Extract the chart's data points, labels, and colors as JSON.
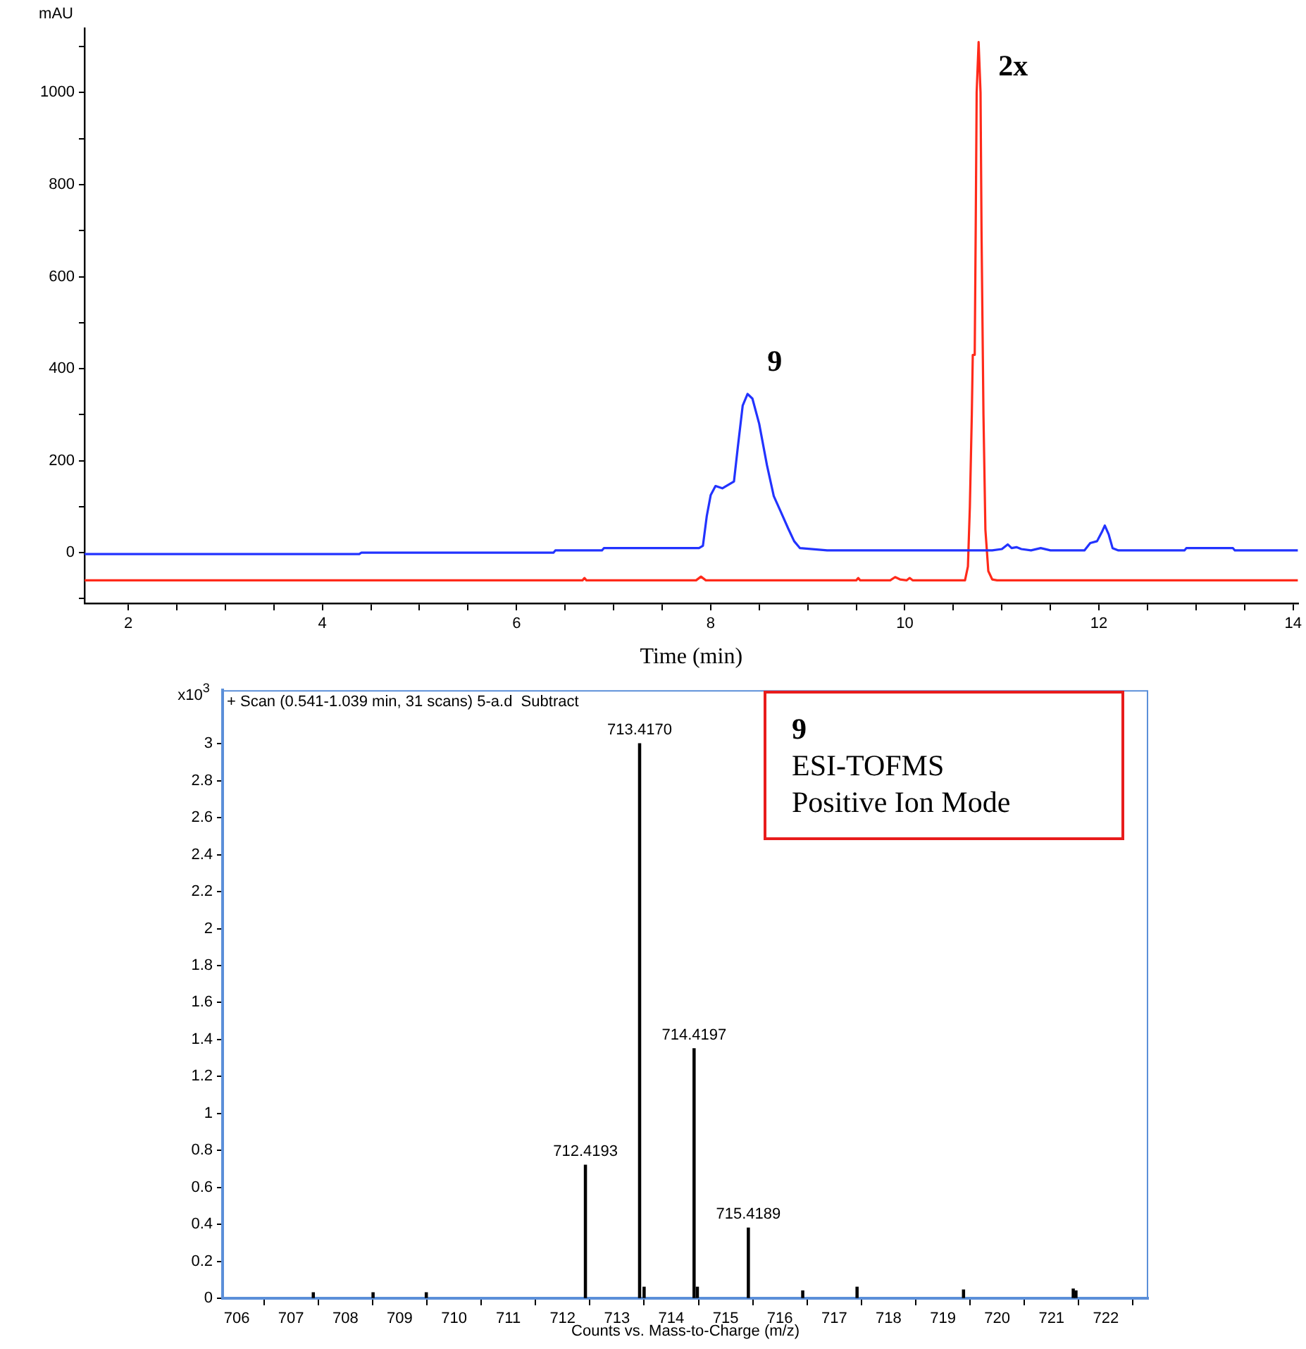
{
  "chart_data": [
    {
      "type": "line",
      "ylabel": "mAU",
      "xlabel": "Time (min)",
      "xlim": [
        1.55,
        14.05
      ],
      "ylim": [
        -110,
        1140
      ],
      "xticks": [
        2,
        {
          "value": 2.5,
          "label": null
        },
        {
          "value": 3,
          "label": null
        },
        {
          "value": 3.5,
          "label": null
        },
        4,
        {
          "value": 4.5,
          "label": null
        },
        {
          "value": 5,
          "label": null
        },
        {
          "value": 5.5,
          "label": null
        },
        6,
        {
          "value": 6.5,
          "label": null
        },
        {
          "value": 7,
          "label": null
        },
        {
          "value": 7.5,
          "label": null
        },
        8,
        {
          "value": 8.5,
          "label": null
        },
        {
          "value": 9,
          "label": null
        },
        {
          "value": 9.5,
          "label": null
        },
        10,
        {
          "value": 10.5,
          "label": null
        },
        {
          "value": 11,
          "label": null
        },
        {
          "value": 11.5,
          "label": null
        },
        12,
        {
          "value": 12.5,
          "label": null
        },
        {
          "value": 13,
          "label": null
        },
        {
          "value": 13.5,
          "label": null
        },
        14
      ],
      "yticks": [
        {
          "value": -100,
          "label": null
        },
        0,
        {
          "value": 100,
          "label": null
        },
        200,
        {
          "value": 300,
          "label": null
        },
        400,
        {
          "value": 500,
          "label": null
        },
        600,
        {
          "value": 700,
          "label": null
        },
        800,
        {
          "value": 900,
          "label": null
        },
        1000,
        {
          "value": 1100,
          "label": null
        }
      ],
      "marker": "none",
      "line_style": "solid",
      "annotations": [
        {
          "text": "9",
          "x": 8.38,
          "y": 345
        },
        {
          "text": "2x",
          "x": 10.76,
          "y": 1110
        }
      ],
      "series": [
        {
          "color": "#2233ff",
          "x": [
            1.55,
            4.38,
            4.4,
            6.38,
            6.4,
            6.88,
            6.9,
            7.88,
            7.92,
            7.96,
            8.0,
            8.05,
            8.12,
            8.2,
            8.24,
            8.28,
            8.33,
            8.38,
            8.43,
            8.5,
            8.58,
            8.65,
            8.72,
            8.8,
            8.86,
            8.92,
            9.2,
            10.9,
            11.0,
            11.06,
            11.1,
            11.15,
            11.2,
            11.3,
            11.4,
            11.5,
            11.85,
            11.91,
            11.98,
            12.03,
            12.06,
            12.1,
            12.14,
            12.2,
            12.88,
            12.9,
            13.38,
            13.4,
            14.05
          ],
          "values": [
            -3,
            -3,
            0,
            0,
            5,
            5,
            10,
            10,
            15,
            80,
            125,
            145,
            140,
            150,
            155,
            230,
            320,
            345,
            335,
            280,
            190,
            123,
            90,
            52,
            25,
            10,
            5,
            5,
            8,
            18,
            10,
            12,
            8,
            5,
            10,
            5,
            5,
            21,
            25,
            45,
            59,
            40,
            10,
            5,
            5,
            10,
            10,
            5,
            5
          ]
        },
        {
          "color": "#ff2a1a",
          "x": [
            1.55,
            6.68,
            6.7,
            6.72,
            7.85,
            7.9,
            7.95,
            9.5,
            9.52,
            9.54,
            9.85,
            9.9,
            9.95,
            10.02,
            10.05,
            10.08,
            10.62,
            10.65,
            10.67,
            10.69,
            10.7,
            10.72,
            10.73,
            10.74,
            10.76,
            10.78,
            10.79,
            10.81,
            10.83,
            10.86,
            10.9,
            10.95,
            14.05
          ],
          "values": [
            -60,
            -60,
            -55,
            -60,
            -60,
            -52,
            -60,
            -60,
            -55,
            -60,
            -60,
            -53,
            -58,
            -60,
            -55,
            -60,
            -60,
            -30,
            100,
            300,
            430,
            430,
            700,
            1000,
            1110,
            1000,
            700,
            300,
            50,
            -40,
            -58,
            -60,
            -60
          ]
        }
      ]
    },
    {
      "type": "bar",
      "title": "+ Scan (0.541-1.039 min, 31 scans) 5-a.d  Subtract",
      "ylabel": "x10$^{3}$",
      "xlabel": "Counts vs. Mass-to-Charge (m/z)",
      "xlim": [
        705.74,
        722.78
      ],
      "ylim": [
        0,
        3.29
      ],
      "xticks": [
        706,
        707,
        708,
        709,
        710,
        711,
        712,
        713,
        714,
        715,
        716,
        717,
        718,
        719,
        720,
        721,
        722
      ],
      "yticks": [
        0,
        0.2,
        0.4,
        0.6,
        0.8,
        1,
        1.2,
        1.4,
        1.6,
        1.8,
        2,
        2.2,
        2.4,
        2.6,
        2.8,
        3
      ],
      "color": "#000000",
      "x": [
        707.41,
        708.51,
        709.49,
        712.4193,
        713.417,
        713.5,
        714.4197,
        714.48,
        715.4189,
        716.42,
        717.42,
        719.38,
        721.4,
        721.45
      ],
      "values": [
        0.03,
        0.03,
        0.03,
        0.72,
        3.0,
        0.06,
        1.35,
        0.06,
        0.38,
        0.04,
        0.06,
        0.045,
        0.05,
        0.04
      ],
      "annotations": [
        "9",
        "ESI-TOFMS",
        "Positive Ion Mode",
        {
          "text": "712.4193",
          "x": 712.4193,
          "y": 0.72
        },
        {
          "text": "713.4170",
          "x": 713.417,
          "y": 3.0
        },
        {
          "text": "714.4197",
          "x": 714.4197,
          "y": 1.35
        },
        {
          "text": "715.4189",
          "x": 715.4189,
          "y": 0.38
        }
      ]
    }
  ]
}
